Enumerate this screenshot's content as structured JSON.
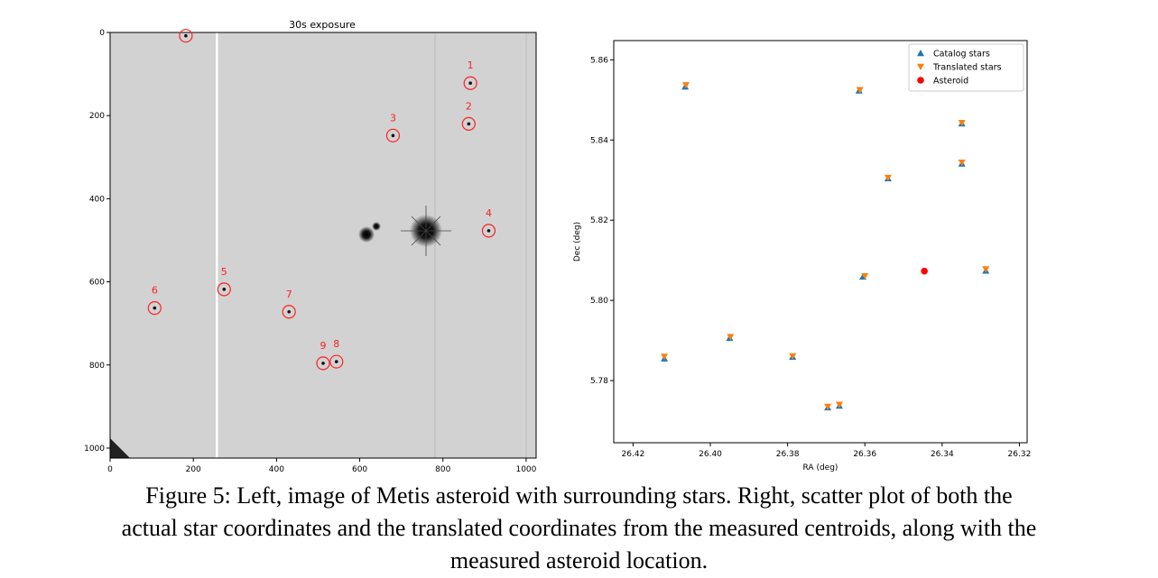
{
  "chart_data": [
    {
      "type": "image",
      "title": "30s exposure",
      "xlim": [
        0,
        1024
      ],
      "ylim": [
        1024,
        0
      ],
      "xticks": [
        0,
        200,
        400,
        600,
        800,
        1000
      ],
      "yticks": [
        0,
        200,
        400,
        600,
        800,
        1000
      ],
      "annotations": [
        {
          "label": "",
          "x": 182,
          "y": 8
        },
        {
          "label": "1",
          "x": 866,
          "y": 122
        },
        {
          "label": "2",
          "x": 862,
          "y": 220
        },
        {
          "label": "3",
          "x": 680,
          "y": 248
        },
        {
          "label": "4",
          "x": 910,
          "y": 477
        },
        {
          "label": "5",
          "x": 274,
          "y": 618
        },
        {
          "label": "6",
          "x": 107,
          "y": 663
        },
        {
          "label": "7",
          "x": 430,
          "y": 672
        },
        {
          "label": "8",
          "x": 544,
          "y": 792
        },
        {
          "label": "9",
          "x": 512,
          "y": 796
        }
      ],
      "marker_color": "#ff2020"
    },
    {
      "type": "scatter",
      "xlabel": "RA (deg)",
      "ylabel": "Dec (deg)",
      "xlim": [
        26.425,
        26.318
      ],
      "ylim": [
        5.7645,
        5.8648
      ],
      "xticks": [
        "26.42",
        "26.40",
        "26.38",
        "26.36",
        "26.34",
        "26.32"
      ],
      "xtick_values": [
        26.42,
        26.4,
        26.38,
        26.36,
        26.34,
        26.32
      ],
      "yticks": [
        "5.78",
        "5.80",
        "5.82",
        "5.84",
        "5.86"
      ],
      "ytick_values": [
        5.78,
        5.8,
        5.82,
        5.84,
        5.86
      ],
      "legend_position": "top-right",
      "series": [
        {
          "name": "Catalog stars",
          "marker": "triangle-up",
          "color": "#1f77b4",
          "points": [
            {
              "x": 26.4065,
              "y": 5.8533
            },
            {
              "x": 26.3615,
              "y": 5.8523
            },
            {
              "x": 26.3349,
              "y": 5.8441
            },
            {
              "x": 26.354,
              "y": 5.8304
            },
            {
              "x": 26.3349,
              "y": 5.8341
            },
            {
              "x": 26.3287,
              "y": 5.8074
            },
            {
              "x": 26.3605,
              "y": 5.8059
            },
            {
              "x": 26.4119,
              "y": 5.7855
            },
            {
              "x": 26.395,
              "y": 5.7906
            },
            {
              "x": 26.3787,
              "y": 5.7859
            },
            {
              "x": 26.3696,
              "y": 5.7733
            },
            {
              "x": 26.3666,
              "y": 5.7737
            }
          ]
        },
        {
          "name": "Translated stars",
          "marker": "triangle-down",
          "color": "#ff7f0e",
          "points": [
            {
              "x": 26.4063,
              "y": 5.8537
            },
            {
              "x": 26.3613,
              "y": 5.8525
            },
            {
              "x": 26.3349,
              "y": 5.8443
            },
            {
              "x": 26.354,
              "y": 5.8306
            },
            {
              "x": 26.3349,
              "y": 5.8344
            },
            {
              "x": 26.3287,
              "y": 5.8078
            },
            {
              "x": 26.36,
              "y": 5.8061
            },
            {
              "x": 26.4119,
              "y": 5.786
            },
            {
              "x": 26.3948,
              "y": 5.7909
            },
            {
              "x": 26.3787,
              "y": 5.7861
            },
            {
              "x": 26.3696,
              "y": 5.7735
            },
            {
              "x": 26.3666,
              "y": 5.774
            }
          ]
        },
        {
          "name": "Asteroid",
          "marker": "circle",
          "color": "#ff0000",
          "points": [
            {
              "x": 26.3446,
              "y": 5.8073
            }
          ]
        }
      ]
    }
  ],
  "caption": {
    "line1": "Figure 5: Left, image of Metis asteroid with surrounding stars. Right, scatter plot of both the",
    "line2": "actual star coordinates and the translated coordinates from the measured centroids, along with the",
    "line3": "measured asteroid location."
  }
}
